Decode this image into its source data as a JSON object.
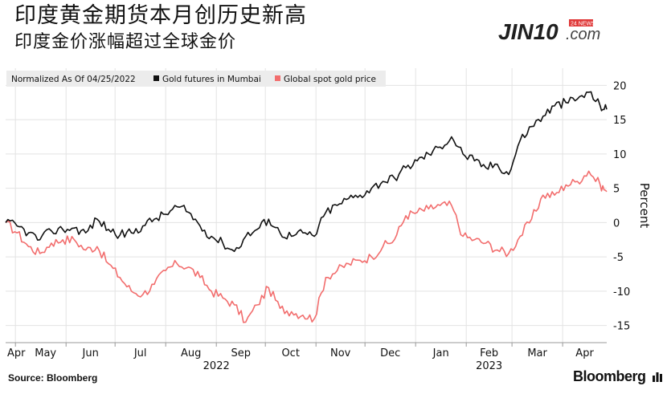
{
  "header": {
    "title_line1": "印度黄金期货本月创历史新高",
    "title_line2": "印度金价涨幅超过全球金价"
  },
  "logo": {
    "text": "JIN10",
    "suffix": ".com",
    "tag": "24 NEWS"
  },
  "footer": {
    "source": "Source: Bloomberg",
    "brand": "Bloomberg"
  },
  "colors": {
    "mumbai": "#111111",
    "spot": "#f26d6d",
    "grid": "#e3e3e3",
    "legend_bg": "#ececec"
  },
  "chart_data": {
    "type": "line",
    "normalized_label": "Normalized As Of 04/25/2022",
    "ylabel": "Percent",
    "ylim": [
      -17.5,
      22.5
    ],
    "yticks": [
      -15,
      -10,
      -5,
      0,
      5,
      10,
      15,
      20
    ],
    "x_months": [
      "Apr",
      "May",
      "Jun",
      "Jul",
      "Aug",
      "Sep",
      "Oct",
      "Nov",
      "Dec",
      "Jan",
      "Feb",
      "Mar",
      "Apr"
    ],
    "x_years": [
      "2022",
      "2023"
    ],
    "x_range": [
      "2022-04-25",
      "2023-04-28"
    ],
    "legend_position": "top-left",
    "series": [
      {
        "name": "Gold futures in Mumbai",
        "color": "#111111",
        "dates": [
          "2022-04-25",
          "2022-05-02",
          "2022-05-09",
          "2022-05-16",
          "2022-05-23",
          "2022-05-30",
          "2022-06-06",
          "2022-06-13",
          "2022-06-20",
          "2022-06-27",
          "2022-07-04",
          "2022-07-11",
          "2022-07-18",
          "2022-07-25",
          "2022-08-01",
          "2022-08-08",
          "2022-08-15",
          "2022-08-22",
          "2022-08-29",
          "2022-09-05",
          "2022-09-12",
          "2022-09-19",
          "2022-09-26",
          "2022-10-03",
          "2022-10-10",
          "2022-10-17",
          "2022-10-24",
          "2022-10-31",
          "2022-11-07",
          "2022-11-14",
          "2022-11-21",
          "2022-11-28",
          "2022-12-05",
          "2022-12-12",
          "2022-12-19",
          "2022-12-26",
          "2023-01-02",
          "2023-01-09",
          "2023-01-16",
          "2023-01-23",
          "2023-01-30",
          "2023-02-06",
          "2023-02-13",
          "2023-02-20",
          "2023-02-27",
          "2023-03-06",
          "2023-03-13",
          "2023-03-20",
          "2023-03-27",
          "2023-04-03",
          "2023-04-10",
          "2023-04-17",
          "2023-04-24",
          "2023-04-28"
        ],
        "values": [
          0,
          -0.5,
          -1.5,
          -2.5,
          -1.2,
          -1,
          -0.8,
          -1.5,
          0.5,
          -1,
          -1.8,
          -1.5,
          -0.5,
          0.5,
          1.2,
          2.3,
          1.5,
          -0.5,
          -2,
          -3,
          -4.2,
          -2,
          -1,
          0.5,
          -1.5,
          -2,
          -1.5,
          -2,
          1.5,
          2.5,
          3.5,
          4,
          5,
          6,
          6.5,
          8,
          9,
          10,
          11,
          12.5,
          10,
          9,
          8,
          8.5,
          7,
          12,
          14,
          15.5,
          17,
          17.5,
          18,
          19,
          17,
          16.5
        ]
      },
      {
        "name": "Global spot gold price",
        "color": "#f26d6d",
        "dates": [
          "2022-04-25",
          "2022-05-02",
          "2022-05-09",
          "2022-05-16",
          "2022-05-23",
          "2022-05-30",
          "2022-06-06",
          "2022-06-13",
          "2022-06-20",
          "2022-06-27",
          "2022-07-04",
          "2022-07-11",
          "2022-07-18",
          "2022-07-25",
          "2022-08-01",
          "2022-08-08",
          "2022-08-15",
          "2022-08-22",
          "2022-08-29",
          "2022-09-05",
          "2022-09-12",
          "2022-09-19",
          "2022-09-26",
          "2022-10-03",
          "2022-10-10",
          "2022-10-17",
          "2022-10-24",
          "2022-10-31",
          "2022-11-07",
          "2022-11-14",
          "2022-11-21",
          "2022-11-28",
          "2022-12-05",
          "2022-12-12",
          "2022-12-19",
          "2022-12-26",
          "2023-01-02",
          "2023-01-09",
          "2023-01-16",
          "2023-01-23",
          "2023-01-30",
          "2023-02-06",
          "2023-02-13",
          "2023-02-20",
          "2023-02-27",
          "2023-03-06",
          "2023-03-13",
          "2023-03-20",
          "2023-03-27",
          "2023-04-03",
          "2023-04-10",
          "2023-04-17",
          "2023-04-24",
          "2023-04-28"
        ],
        "values": [
          0,
          -1.5,
          -3.5,
          -4.5,
          -3,
          -2.5,
          -2.5,
          -4,
          -3.5,
          -6,
          -8,
          -10,
          -10.5,
          -9,
          -7,
          -6,
          -6.5,
          -8,
          -10,
          -11,
          -12,
          -14.5,
          -12,
          -9.5,
          -12.5,
          -13,
          -13.5,
          -14,
          -8,
          -7,
          -6,
          -5.5,
          -5,
          -3.5,
          -2.5,
          1,
          1.5,
          2,
          2.5,
          2.5,
          -2,
          -2.5,
          -3,
          -4,
          -4.5,
          -2,
          0.5,
          4,
          4,
          5.5,
          6,
          7.5,
          5.5,
          4.5
        ]
      }
    ]
  }
}
